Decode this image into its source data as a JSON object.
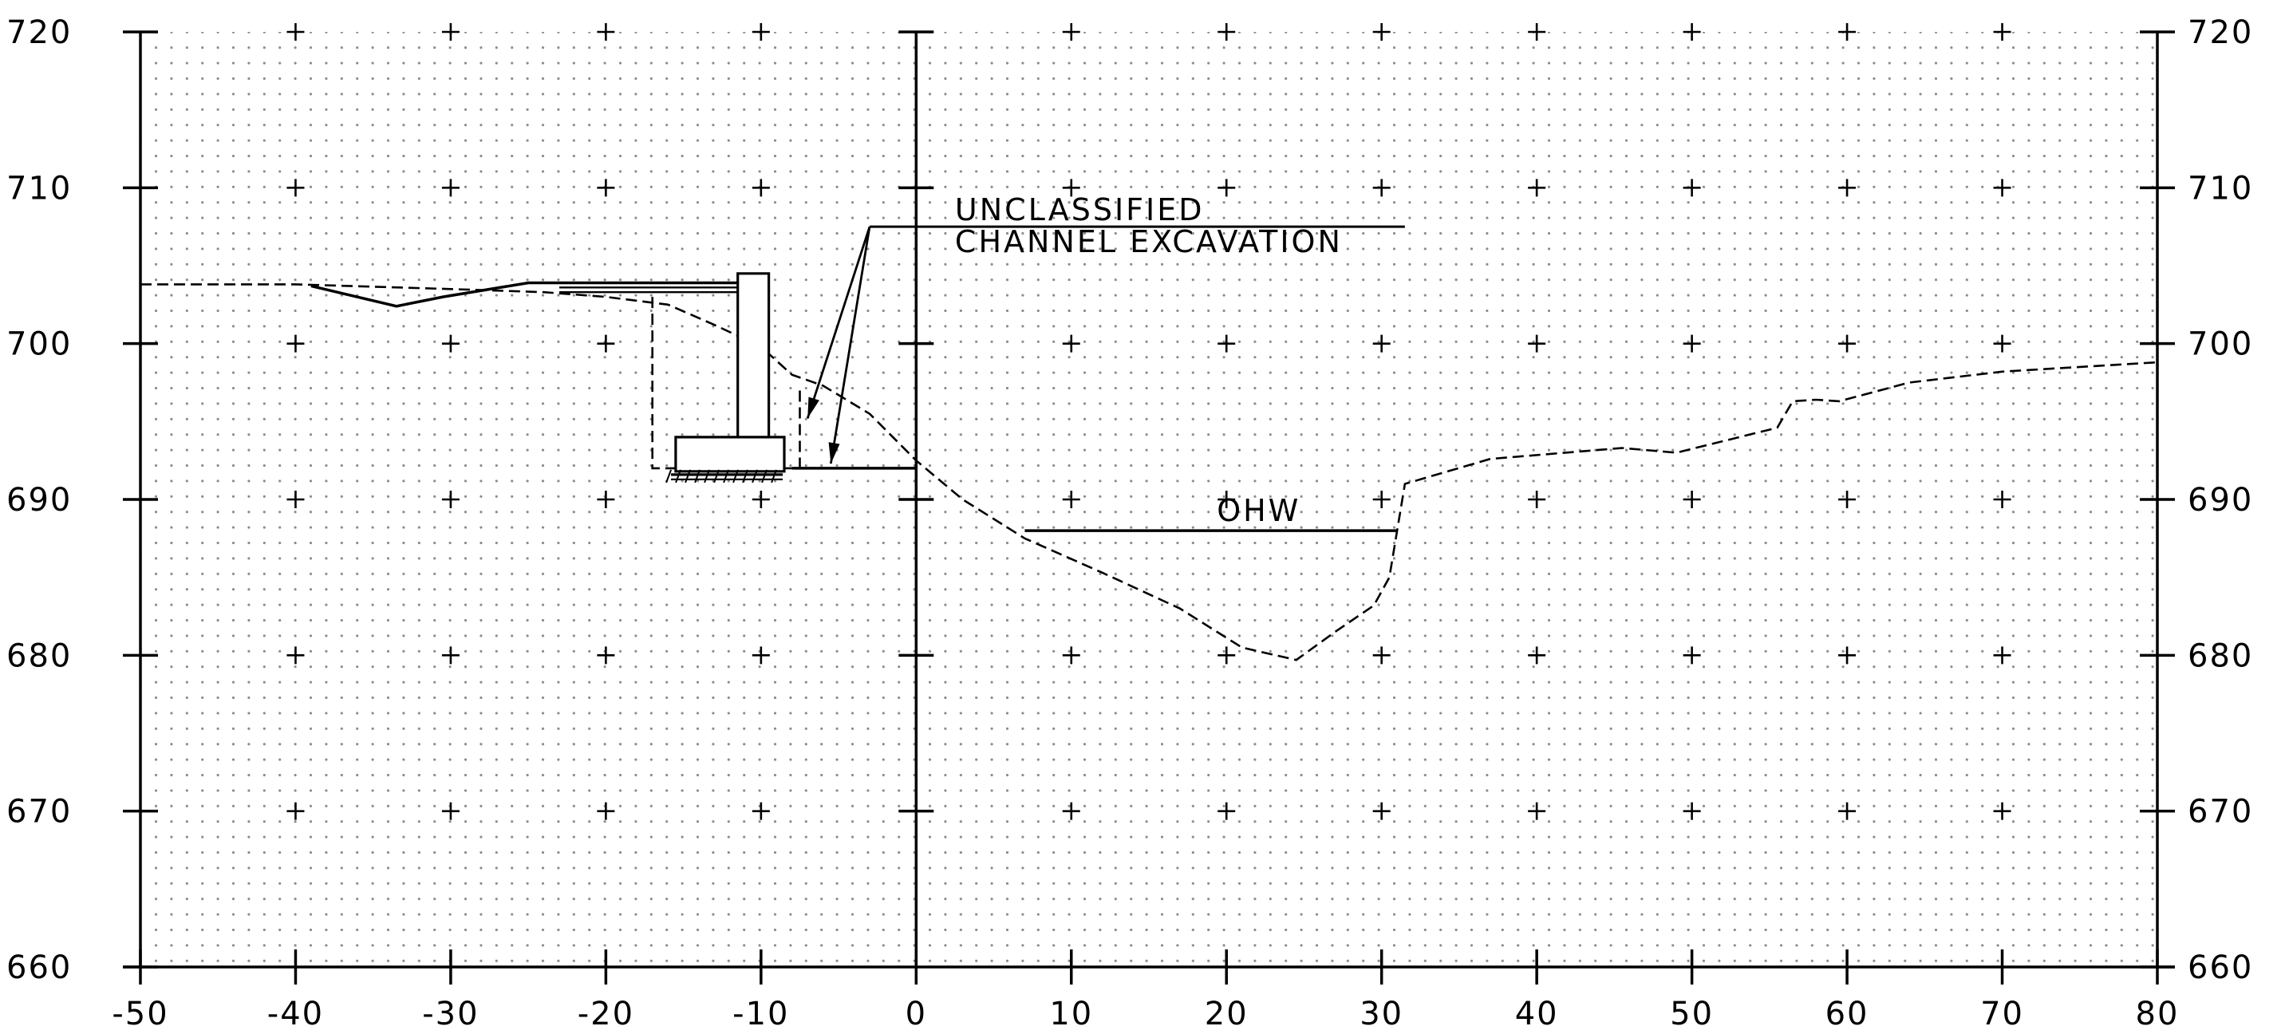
{
  "chart_data": {
    "type": "cross-section",
    "xlim": [
      -50,
      80
    ],
    "ylim": [
      660,
      720
    ],
    "x_ticks": [
      -50,
      -40,
      -30,
      -20,
      -10,
      0,
      10,
      20,
      30,
      40,
      50,
      60,
      70,
      80
    ],
    "y_ticks": [
      660,
      670,
      680,
      690,
      700,
      710,
      720
    ],
    "x_tick_labels": [
      "-50",
      "-40",
      "-30",
      "-20",
      "-10",
      "0",
      "10",
      "20",
      "30",
      "40",
      "50",
      "60",
      "70",
      "80"
    ],
    "y_tick_labels": [
      "660",
      "670",
      "680",
      "690",
      "700",
      "710",
      "720"
    ],
    "grid": "dotted",
    "ground_profile": [
      [
        -50,
        703.8
      ],
      [
        -40,
        703.8
      ],
      [
        -30,
        703.5
      ],
      [
        -24,
        703.3
      ],
      [
        -20,
        703.0
      ],
      [
        -16,
        702.5
      ],
      [
        -13,
        701.2
      ],
      [
        -10,
        699.8
      ],
      [
        -8,
        698.0
      ],
      [
        -6,
        697.3
      ],
      [
        -3,
        695.5
      ],
      [
        0,
        692.5
      ],
      [
        3,
        690.0
      ],
      [
        7,
        687.5
      ],
      [
        12,
        685.3
      ],
      [
        17,
        683.0
      ],
      [
        21,
        680.5
      ],
      [
        24.5,
        679.7
      ],
      [
        27,
        681.5
      ],
      [
        29.5,
        683.2
      ],
      [
        30.5,
        685.0
      ],
      [
        31.5,
        691.0
      ],
      [
        37,
        692.6
      ],
      [
        45.5,
        693.3
      ],
      [
        49,
        693.0
      ],
      [
        55.5,
        694.6
      ],
      [
        56.5,
        696.3
      ],
      [
        58,
        696.4
      ],
      [
        59.5,
        696.3
      ],
      [
        64,
        697.5
      ],
      [
        70,
        698.2
      ],
      [
        80,
        698.8
      ]
    ],
    "proposed_grade": [
      [
        -39,
        703.7
      ],
      [
        -33.5,
        702.4
      ],
      [
        -30.5,
        703.0
      ],
      [
        -25,
        703.9
      ],
      [
        -10.5,
        703.9
      ]
    ],
    "excavation_outline": [
      [
        -17,
        703.0
      ],
      [
        -17,
        692.0
      ],
      [
        -7.5,
        692.0
      ],
      [
        -7.5,
        697.3
      ]
    ],
    "excavation_bottom": [
      [
        -8,
        692.0
      ],
      [
        0,
        692.0
      ]
    ],
    "wall_stem": [
      [
        -11.5,
        693.5
      ],
      [
        -11.5,
        704.5
      ],
      [
        -9.5,
        704.5
      ],
      [
        -9.5,
        693.5
      ]
    ],
    "wall_footing": [
      [
        -15.5,
        691.8
      ],
      [
        -15.5,
        694.0
      ],
      [
        -8.5,
        694.0
      ],
      [
        -8.5,
        691.8
      ]
    ],
    "backfill_lines_y": [
      703.9,
      703.6,
      703.3
    ],
    "ohw": {
      "label": "OHW",
      "elevation": 688.0,
      "x_start": 7,
      "x_end": 31
    },
    "leader": {
      "label_lines": [
        "UNCLASSIFIED",
        "CHANNEL EXCAVATION"
      ],
      "line_y": 707.5,
      "x_start": -3,
      "x_end": 31.5,
      "arrow_targets": [
        [
          -7,
          695.2
        ],
        [
          -5.5,
          692.3
        ]
      ]
    }
  }
}
